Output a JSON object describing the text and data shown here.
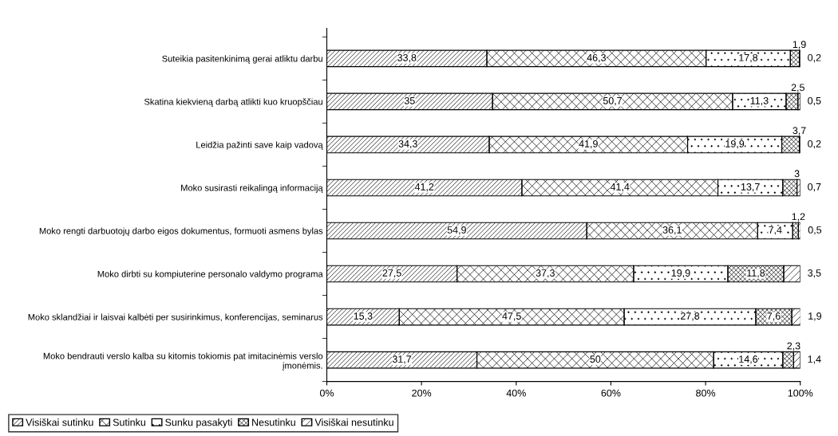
{
  "chart_data": {
    "type": "bar",
    "orientation": "horizontal",
    "stacked": true,
    "categories": [
      "Suteikia pasitenkinimą gerai atliktu darbu",
      "Skatina kiekvieną darbą atlikti kuo kruopščiau",
      "Leidžia pažinti save kaip vadovą",
      "Moko susirasti reikalingą informaciją",
      "Moko rengti darbuotojų darbo eigos dokumentus, formuoti asmens bylas",
      "Moko dirbti su kompiuterine personalo valdymo programa",
      "Moko sklandžiai ir laisvai kalbėti per susirinkimus, konferencijas, seminarus",
      "Moko bendrauti verslo kalba su kitomis tokiomis pat imitacinėmis verslo\nįmonėmis."
    ],
    "series": [
      {
        "name": "Visiškai sutinku",
        "color": "#000000",
        "values": [
          33.8,
          35,
          34.3,
          41.2,
          54.9,
          27.5,
          15.3,
          31.7
        ],
        "value_labels": [
          "33,8",
          "35",
          "34,3",
          "41,2",
          "54,9",
          "27,5",
          "15,3",
          "31,7"
        ]
      },
      {
        "name": "Sutinku",
        "color": "#000000",
        "values": [
          46.3,
          50.7,
          41.9,
          41.4,
          36.1,
          37.3,
          47.5,
          50
        ],
        "value_labels": [
          "46,3",
          "50,7",
          "41,9",
          "41,4",
          "36,1",
          "37,3",
          "47,5",
          "50"
        ]
      },
      {
        "name": "Sunku pasakyti",
        "color": "#000000",
        "values": [
          17.8,
          11.3,
          19.9,
          13.7,
          7.4,
          19.9,
          27.8,
          14.6
        ],
        "value_labels": [
          "17,8",
          "11,3",
          "19,9",
          "13,7",
          "7,4",
          "19,9",
          "27,8",
          "14,6"
        ]
      },
      {
        "name": "Nesutinku",
        "color": "#000000",
        "values": [
          1.9,
          2.5,
          3.7,
          3,
          1.2,
          11.8,
          7.6,
          2.3
        ],
        "value_labels": [
          "1,9",
          "2,5",
          "3,7",
          "3",
          "1,2",
          "11,8",
          "7,6",
          "2,3"
        ]
      },
      {
        "name": "Visiškai nesutinku",
        "color": "#000000",
        "values": [
          0.2,
          0.5,
          0.2,
          0.7,
          0.5,
          3.5,
          1.9,
          1.4
        ],
        "value_labels": [
          "0,2",
          "0,5",
          "0,2",
          "0,7",
          "0,5",
          "3,5",
          "1,9",
          "1,4"
        ]
      }
    ],
    "xlim": [
      0,
      100
    ],
    "xticks": [
      {
        "value": 0,
        "label": "0%"
      },
      {
        "value": 20,
        "label": "20%"
      },
      {
        "value": 40,
        "label": "40%"
      },
      {
        "value": 60,
        "label": "60%"
      },
      {
        "value": 80,
        "label": "80%"
      },
      {
        "value": 100,
        "label": "100%"
      }
    ],
    "legend": "bottom left",
    "grid": false
  }
}
